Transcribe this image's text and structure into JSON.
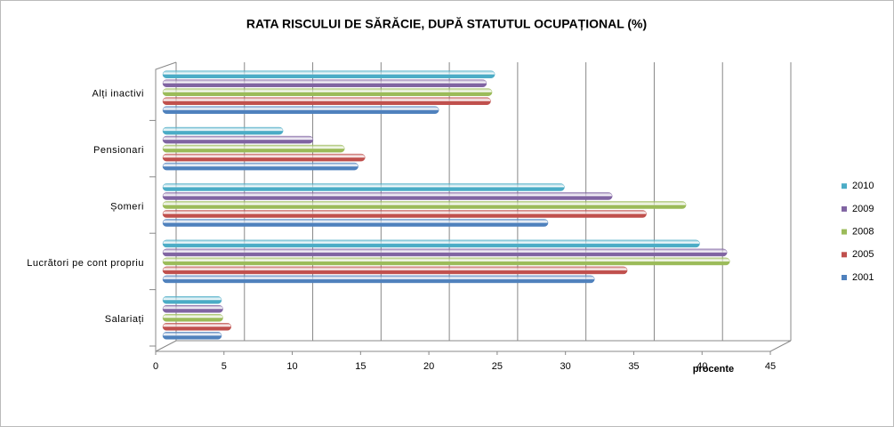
{
  "chart_data": {
    "type": "bar",
    "orientation": "horizontal",
    "title": "RATA RISCULUI DE SĂRĂCIE, DUPĂ STATUTUL OCUPAȚIONAL (%)",
    "xlabel": "procente",
    "categories": [
      "Salariați",
      "Lucrători pe cont propriu",
      "Șomeri",
      "Pensionari",
      "Alți inactivi"
    ],
    "series": [
      {
        "name": "2001",
        "color": "#4f81bd",
        "values": [
          4.3,
          31.6,
          28.2,
          14.3,
          20.2
        ]
      },
      {
        "name": "2005",
        "color": "#c0504d",
        "values": [
          5.0,
          34.0,
          35.4,
          14.8,
          24.0
        ]
      },
      {
        "name": "2008",
        "color": "#9bbb59",
        "values": [
          4.4,
          41.5,
          38.3,
          13.3,
          24.1
        ]
      },
      {
        "name": "2009",
        "color": "#8064a2",
        "values": [
          4.4,
          41.3,
          32.9,
          11.0,
          23.7
        ]
      },
      {
        "name": "2010",
        "color": "#4bacc6",
        "values": [
          4.3,
          39.3,
          29.4,
          8.8,
          24.3
        ]
      }
    ],
    "xlim": [
      0,
      45
    ],
    "xticks": [
      0,
      5,
      10,
      15,
      20,
      25,
      30,
      35,
      40,
      45
    ],
    "grid": true,
    "legend": "right"
  }
}
